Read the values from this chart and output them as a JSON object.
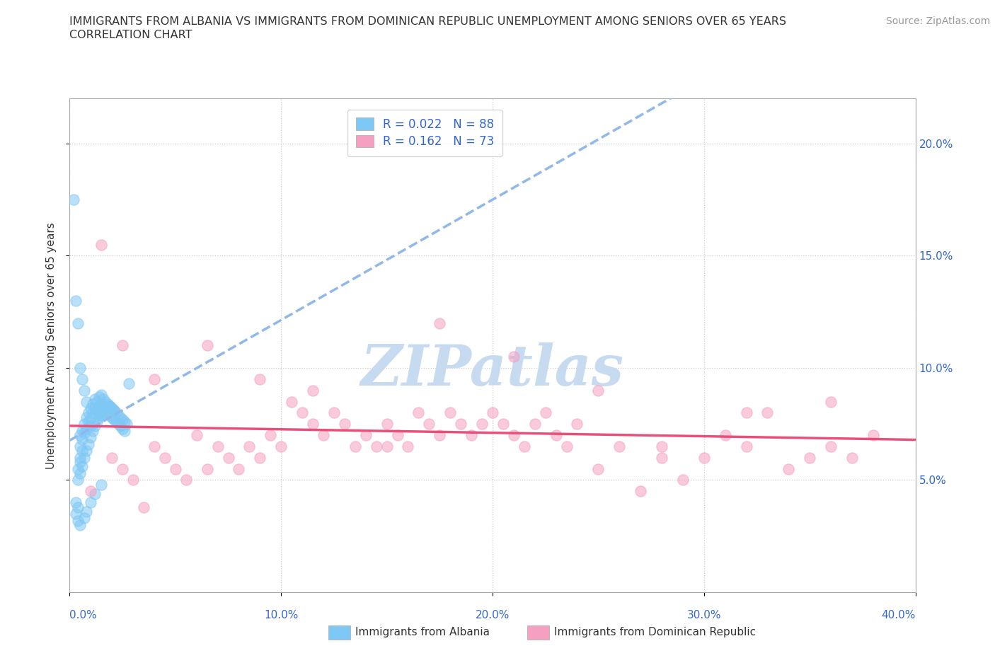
{
  "title_line1": "IMMIGRANTS FROM ALBANIA VS IMMIGRANTS FROM DOMINICAN REPUBLIC UNEMPLOYMENT AMONG SENIORS OVER 65 YEARS",
  "title_line2": "CORRELATION CHART",
  "source_text": "Source: ZipAtlas.com",
  "ylabel": "Unemployment Among Seniors over 65 years",
  "xlim": [
    0.0,
    0.4
  ],
  "ylim": [
    0.0,
    0.22
  ],
  "ytick_positions": [
    0.05,
    0.1,
    0.15,
    0.2
  ],
  "ytick_labels": [
    "5.0%",
    "10.0%",
    "15.0%",
    "20.0%"
  ],
  "albania_color": "#7ec8f5",
  "dominican_color": "#f5a0c0",
  "albania_R": 0.022,
  "albania_N": 88,
  "dominican_R": 0.162,
  "dominican_N": 73,
  "regression_albania_color": "#90b8e8",
  "regression_dominican_color": "#e8507a",
  "watermark": "ZIPatlas",
  "watermark_color_r": 0.78,
  "watermark_color_g": 0.86,
  "watermark_color_b": 0.94,
  "legend_label_albania": "Immigrants from Albania",
  "legend_label_dominican": "Immigrants from Dominican Republic",
  "albania_x": [
    0.005,
    0.005,
    0.005,
    0.006,
    0.006,
    0.006,
    0.007,
    0.007,
    0.008,
    0.008,
    0.009,
    0.009,
    0.01,
    0.01,
    0.01,
    0.011,
    0.011,
    0.012,
    0.012,
    0.013,
    0.013,
    0.014,
    0.014,
    0.014,
    0.015,
    0.015,
    0.015,
    0.016,
    0.016,
    0.017,
    0.017,
    0.018,
    0.018,
    0.019,
    0.019,
    0.02,
    0.02,
    0.021,
    0.021,
    0.022,
    0.022,
    0.023,
    0.023,
    0.024,
    0.024,
    0.025,
    0.025,
    0.026,
    0.026,
    0.027,
    0.004,
    0.004,
    0.005,
    0.005,
    0.006,
    0.007,
    0.008,
    0.009,
    0.01,
    0.011,
    0.012,
    0.013,
    0.014,
    0.015,
    0.016,
    0.017,
    0.018,
    0.019,
    0.02,
    0.021,
    0.003,
    0.003,
    0.004,
    0.004,
    0.005,
    0.007,
    0.008,
    0.01,
    0.012,
    0.015,
    0.002,
    0.003,
    0.004,
    0.005,
    0.006,
    0.007,
    0.008,
    0.028
  ],
  "albania_y": [
    0.07,
    0.065,
    0.06,
    0.072,
    0.068,
    0.063,
    0.075,
    0.071,
    0.078,
    0.073,
    0.08,
    0.076,
    0.082,
    0.078,
    0.074,
    0.084,
    0.08,
    0.086,
    0.082,
    0.085,
    0.081,
    0.087,
    0.083,
    0.079,
    0.088,
    0.084,
    0.08,
    0.086,
    0.082,
    0.085,
    0.081,
    0.084,
    0.08,
    0.083,
    0.079,
    0.082,
    0.078,
    0.081,
    0.077,
    0.08,
    0.076,
    0.079,
    0.075,
    0.078,
    0.074,
    0.077,
    0.073,
    0.076,
    0.072,
    0.075,
    0.055,
    0.05,
    0.058,
    0.053,
    0.056,
    0.06,
    0.063,
    0.066,
    0.069,
    0.072,
    0.074,
    0.076,
    0.078,
    0.079,
    0.08,
    0.081,
    0.082,
    0.083,
    0.082,
    0.081,
    0.04,
    0.035,
    0.038,
    0.032,
    0.03,
    0.033,
    0.036,
    0.04,
    0.044,
    0.048,
    0.175,
    0.13,
    0.12,
    0.1,
    0.095,
    0.09,
    0.085,
    0.093
  ],
  "dominican_x": [
    0.01,
    0.02,
    0.025,
    0.03,
    0.035,
    0.04,
    0.045,
    0.05,
    0.055,
    0.06,
    0.065,
    0.07,
    0.075,
    0.08,
    0.085,
    0.09,
    0.095,
    0.1,
    0.105,
    0.11,
    0.115,
    0.12,
    0.125,
    0.13,
    0.135,
    0.14,
    0.145,
    0.15,
    0.155,
    0.16,
    0.165,
    0.17,
    0.175,
    0.18,
    0.185,
    0.19,
    0.195,
    0.2,
    0.205,
    0.21,
    0.215,
    0.22,
    0.225,
    0.23,
    0.235,
    0.24,
    0.25,
    0.26,
    0.27,
    0.28,
    0.29,
    0.3,
    0.31,
    0.32,
    0.33,
    0.34,
    0.35,
    0.36,
    0.37,
    0.38,
    0.025,
    0.04,
    0.065,
    0.09,
    0.115,
    0.15,
    0.175,
    0.21,
    0.25,
    0.28,
    0.32,
    0.36,
    0.015
  ],
  "dominican_y": [
    0.045,
    0.06,
    0.055,
    0.05,
    0.038,
    0.065,
    0.06,
    0.055,
    0.05,
    0.07,
    0.055,
    0.065,
    0.06,
    0.055,
    0.065,
    0.06,
    0.07,
    0.065,
    0.085,
    0.08,
    0.075,
    0.07,
    0.08,
    0.075,
    0.065,
    0.07,
    0.065,
    0.075,
    0.07,
    0.065,
    0.08,
    0.075,
    0.07,
    0.08,
    0.075,
    0.07,
    0.075,
    0.08,
    0.075,
    0.07,
    0.065,
    0.075,
    0.08,
    0.07,
    0.065,
    0.075,
    0.055,
    0.065,
    0.045,
    0.06,
    0.05,
    0.06,
    0.07,
    0.065,
    0.08,
    0.055,
    0.06,
    0.065,
    0.06,
    0.07,
    0.11,
    0.095,
    0.11,
    0.095,
    0.09,
    0.065,
    0.12,
    0.105,
    0.09,
    0.065,
    0.08,
    0.085,
    0.155
  ]
}
